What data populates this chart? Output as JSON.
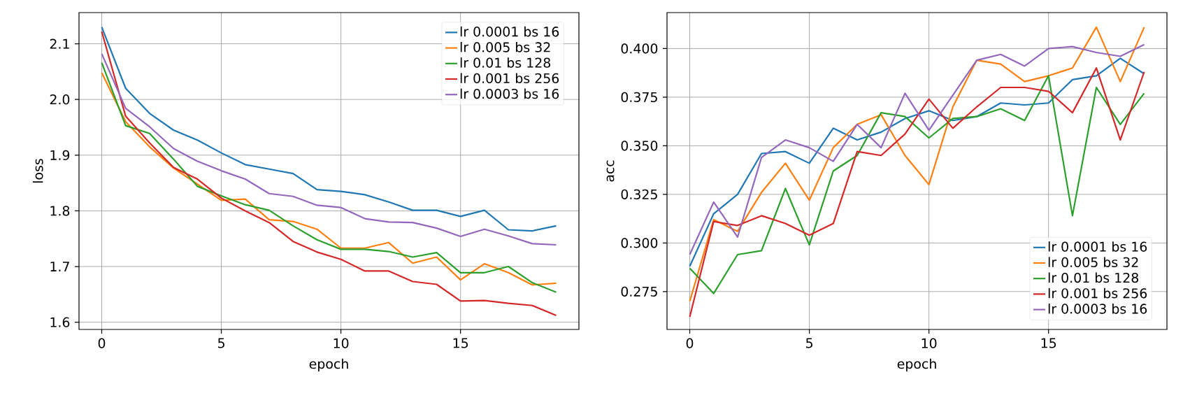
{
  "chart_data": [
    {
      "type": "line",
      "xlabel": "epoch",
      "ylabel": "loss",
      "x": [
        0,
        1,
        2,
        3,
        4,
        5,
        6,
        7,
        8,
        9,
        10,
        11,
        12,
        13,
        14,
        15,
        16,
        17,
        18,
        19
      ],
      "xlim": [
        -0.95,
        19.95
      ],
      "xticks": [
        0,
        5,
        10,
        15
      ],
      "ylim": [
        1.587,
        2.156
      ],
      "yticks": [
        1.6,
        1.7,
        1.8,
        1.9,
        {
          "value": 2.0,
          "label": "2.0"
        },
        2.1
      ],
      "grid": true,
      "legend": "top right",
      "series": [
        {
          "name": "lr 0.0001 bs 16",
          "color": "#1f77b4",
          "values": [
            2.13,
            2.02,
            1.975,
            1.945,
            1.927,
            1.904,
            1.883,
            1.875,
            1.867,
            1.838,
            1.835,
            1.829,
            1.816,
            1.801,
            1.801,
            1.79,
            1.801,
            1.766,
            1.764,
            1.773
          ]
        },
        {
          "name": "lr 0.005 bs 32",
          "color": "#ff7f0e",
          "values": [
            2.048,
            1.96,
            1.915,
            1.877,
            1.848,
            1.819,
            1.821,
            1.784,
            1.781,
            1.767,
            1.733,
            1.733,
            1.743,
            1.706,
            1.717,
            1.676,
            1.705,
            1.689,
            1.667,
            1.67
          ]
        },
        {
          "name": "lr 0.01 bs 128",
          "color": "#2ca02c",
          "values": [
            2.066,
            1.953,
            1.939,
            1.893,
            1.844,
            1.827,
            1.811,
            1.801,
            1.773,
            1.748,
            1.731,
            1.731,
            1.727,
            1.717,
            1.725,
            1.689,
            1.689,
            1.7,
            1.671,
            1.654
          ]
        },
        {
          "name": "lr 0.001 bs 256",
          "color": "#d62728",
          "values": [
            2.122,
            1.97,
            1.922,
            1.878,
            1.857,
            1.823,
            1.8,
            1.779,
            1.745,
            1.726,
            1.713,
            1.692,
            1.692,
            1.673,
            1.668,
            1.638,
            1.639,
            1.634,
            1.63,
            1.612
          ]
        },
        {
          "name": "lr 0.0003 bs 16",
          "color": "#9467bd",
          "values": [
            2.082,
            1.984,
            1.951,
            1.912,
            1.889,
            1.872,
            1.857,
            1.831,
            1.826,
            1.81,
            1.806,
            1.786,
            1.78,
            1.779,
            1.769,
            1.754,
            1.767,
            1.755,
            1.741,
            1.739
          ]
        }
      ]
    },
    {
      "type": "line",
      "xlabel": "epoch",
      "ylabel": "acc",
      "x": [
        0,
        1,
        2,
        3,
        4,
        5,
        6,
        7,
        8,
        9,
        10,
        11,
        12,
        13,
        14,
        15,
        16,
        17,
        18,
        19
      ],
      "xlim": [
        -0.95,
        19.95
      ],
      "xticks": [
        0,
        5,
        10,
        15
      ],
      "ylim": [
        0.2555,
        0.4185
      ],
      "yticks": [
        0.275,
        {
          "value": 0.3,
          "label": "0.300"
        },
        0.325,
        {
          "value": 0.35,
          "label": "0.350"
        },
        0.375,
        {
          "value": 0.4,
          "label": "0.400"
        }
      ],
      "grid": true,
      "legend": "bottom right",
      "series": [
        {
          "name": "lr 0.0001 bs 16",
          "color": "#1f77b4",
          "values": [
            0.288,
            0.315,
            0.325,
            0.346,
            0.347,
            0.341,
            0.359,
            0.353,
            0.357,
            0.364,
            0.368,
            0.363,
            0.365,
            0.372,
            0.371,
            0.372,
            0.384,
            0.386,
            0.395,
            0.387
          ]
        },
        {
          "name": "lr 0.005 bs 32",
          "color": "#ff7f0e",
          "values": [
            0.27,
            0.312,
            0.306,
            0.326,
            0.341,
            0.322,
            0.349,
            0.361,
            0.366,
            0.345,
            0.33,
            0.37,
            0.394,
            0.392,
            0.383,
            0.386,
            0.39,
            0.411,
            0.383,
            0.411
          ]
        },
        {
          "name": "lr 0.01 bs 128",
          "color": "#2ca02c",
          "values": [
            0.287,
            0.274,
            0.294,
            0.296,
            0.328,
            0.299,
            0.337,
            0.345,
            0.367,
            0.365,
            0.354,
            0.364,
            0.365,
            0.369,
            0.363,
            0.386,
            0.314,
            0.38,
            0.361,
            0.377
          ]
        },
        {
          "name": "lr 0.001 bs 256",
          "color": "#d62728",
          "values": [
            0.262,
            0.311,
            0.309,
            0.314,
            0.31,
            0.304,
            0.31,
            0.347,
            0.345,
            0.356,
            0.374,
            0.359,
            0.37,
            0.38,
            0.38,
            0.378,
            0.367,
            0.39,
            0.353,
            0.388
          ]
        },
        {
          "name": "lr 0.0003 bs 16",
          "color": "#9467bd",
          "values": [
            0.294,
            0.321,
            0.303,
            0.344,
            0.353,
            0.349,
            0.342,
            0.361,
            0.349,
            0.377,
            0.358,
            0.376,
            0.394,
            0.397,
            0.391,
            0.4,
            0.401,
            0.398,
            0.396,
            0.402
          ]
        }
      ]
    }
  ]
}
